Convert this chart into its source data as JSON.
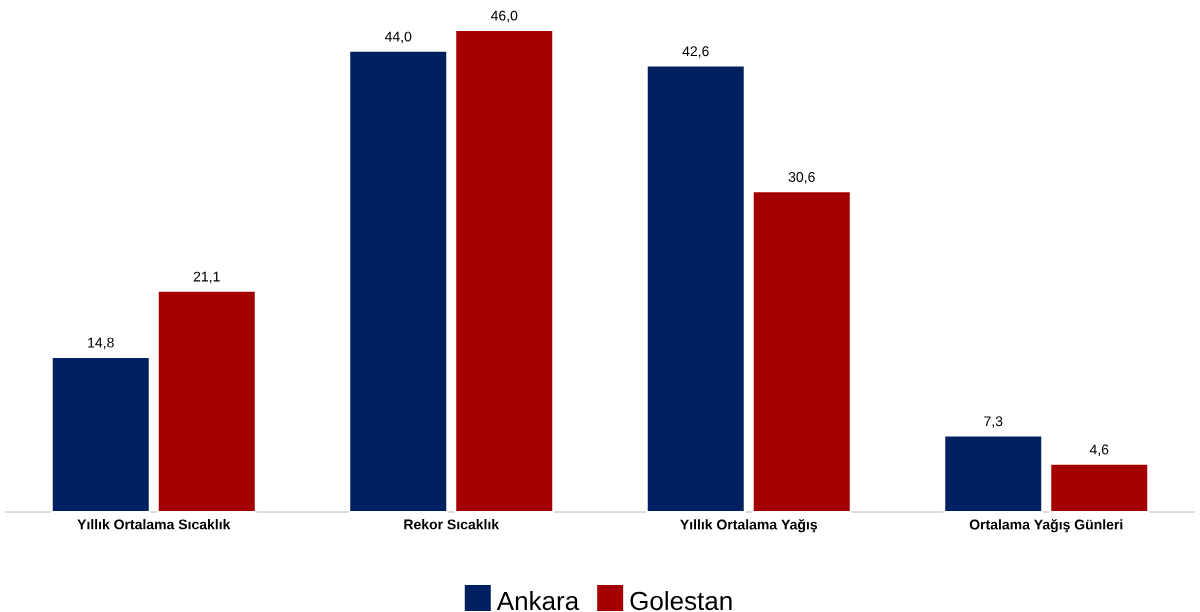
{
  "chart_data": {
    "type": "bar",
    "categories": [
      "Yıllık Ortalama Sıcaklık",
      "Rekor Sıcaklık",
      "Yıllık Ortalama Yağış",
      "Ortalama Yağış Günleri"
    ],
    "series": [
      {
        "name": "Ankara",
        "color": "#002060",
        "values": [
          14.8,
          44.0,
          42.6,
          7.3
        ],
        "value_labels": [
          "14,8",
          "44,0",
          "42,6",
          "7,3"
        ]
      },
      {
        "name": "Golestan",
        "color": "#a50000",
        "values": [
          21.1,
          46.0,
          30.6,
          4.6
        ],
        "value_labels": [
          "21,1",
          "46,0",
          "30,6",
          "4,6"
        ]
      }
    ],
    "legend": "bottom"
  }
}
